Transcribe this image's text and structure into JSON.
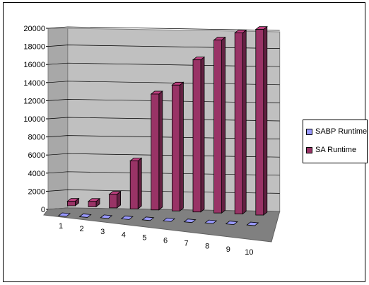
{
  "chart_data": {
    "type": "bar",
    "style": "3d-clustered-column",
    "categories": [
      "1",
      "2",
      "3",
      "4",
      "5",
      "6",
      "7",
      "8",
      "9",
      "10"
    ],
    "series": [
      {
        "name": "SABP Runtime",
        "values": [
          0,
          0,
          0,
          0,
          0,
          0,
          0,
          0,
          0,
          0
        ],
        "color": "#9999FF"
      },
      {
        "name": "SA Runtime",
        "values": [
          500,
          600,
          1500,
          5300,
          12800,
          13900,
          16800,
          19100,
          20000,
          20500
        ],
        "color": "#993366"
      }
    ],
    "ylim": [
      0,
      20000
    ],
    "yticks": [
      "0",
      "2000",
      "4000",
      "6000",
      "8000",
      "10000",
      "12000",
      "14000",
      "16000",
      "18000",
      "20000"
    ],
    "grid": true,
    "legend_position": "right",
    "title": "",
    "xlabel": "",
    "ylabel": ""
  },
  "legend": {
    "items": [
      {
        "label": "SABP Runtime",
        "color": "#9999FF"
      },
      {
        "label": "SA Runtime",
        "color": "#993366"
      }
    ]
  }
}
